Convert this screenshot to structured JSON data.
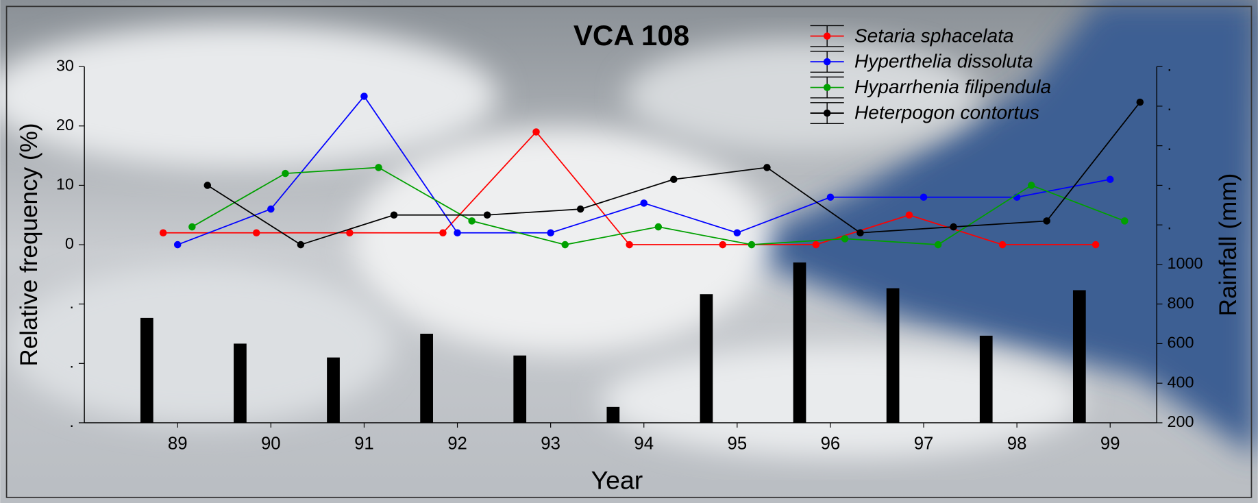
{
  "chart_data": {
    "type": "line",
    "title": "VCA 108",
    "x_label": "Year",
    "y_label": "Relative frequency (%)",
    "y2_label": "Rainfall (mm)",
    "x": [
      89,
      90,
      91,
      92,
      93,
      94,
      95,
      96,
      97,
      98,
      99
    ],
    "xlim": [
      88,
      99.5
    ],
    "xticks": [
      89,
      90,
      91,
      92,
      93,
      94,
      95,
      96,
      97,
      98,
      99
    ],
    "ylim": [
      -30,
      30
    ],
    "yticks": [
      {
        "value": -30,
        "label": "."
      },
      {
        "value": -20,
        "label": "."
      },
      {
        "value": -10,
        "label": "."
      },
      0,
      10,
      20,
      30
    ],
    "y2lim": [
      200,
      2000
    ],
    "y2ticks": [
      200,
      400,
      600,
      800,
      1000,
      {
        "value": 1200,
        "label": "."
      },
      {
        "value": 1400,
        "label": "."
      },
      {
        "value": 1600,
        "label": "."
      },
      {
        "value": 1800,
        "label": "."
      },
      {
        "value": 2000,
        "label": "."
      }
    ],
    "legend": "top-right",
    "series": [
      {
        "name": "Setaria sphacelata",
        "color": "#ff0000",
        "values": [
          2,
          2,
          2,
          2,
          19,
          0,
          0,
          0,
          5,
          0,
          0
        ]
      },
      {
        "name": "Hyperthelia dissoluta",
        "color": "#0000ff",
        "values": [
          0,
          6,
          25,
          2,
          2,
          7,
          2,
          8,
          8,
          8,
          11
        ]
      },
      {
        "name": "Hyparrhenia filipendula",
        "color": "#00a000",
        "values": [
          3,
          12,
          13,
          4,
          0,
          3,
          0,
          1,
          0,
          10,
          4
        ]
      },
      {
        "name": "Heterpogon contortus",
        "color": "#000000",
        "values": [
          10,
          0,
          5,
          5,
          6,
          11,
          13,
          2,
          3,
          4,
          24
        ]
      },
      {
        "type": "bar",
        "axis": "y2",
        "color": "#000000",
        "values": [
          730,
          600,
          530,
          650,
          540,
          280,
          850,
          1010,
          880,
          640,
          870
        ]
      }
    ]
  }
}
